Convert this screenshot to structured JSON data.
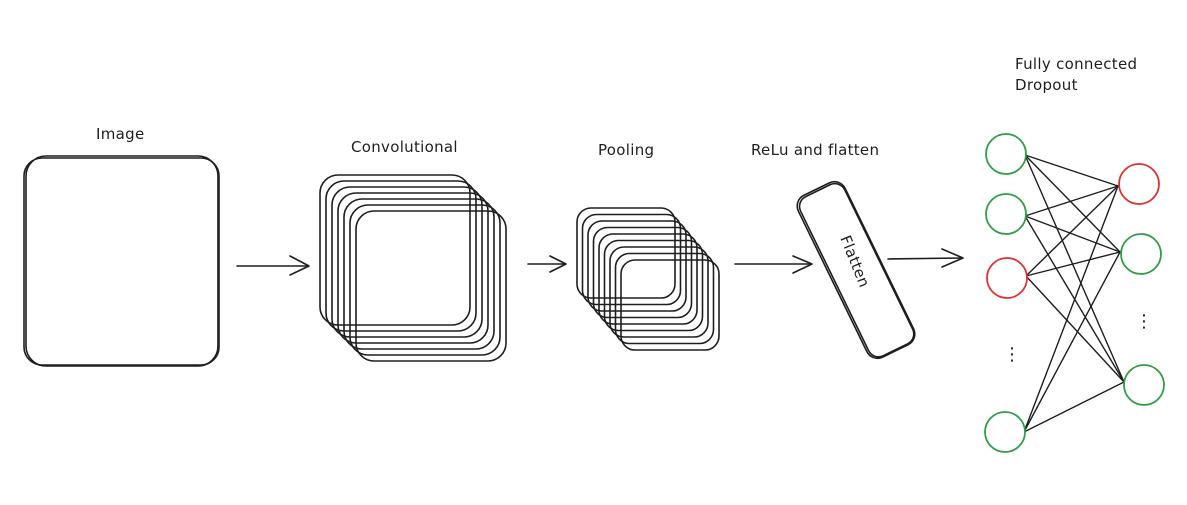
{
  "labels": {
    "image": "Image",
    "convolutional": "Convolutional",
    "pooling": "Pooling",
    "relu_flatten": "ReLu and flatten",
    "flatten_box": "Flatten",
    "fully_connected_line1": "Fully connected",
    "fully_connected_line2": "Dropout",
    "ellipsis_input": "⋮",
    "ellipsis_output": "⋮"
  },
  "colors": {
    "stroke": "#1e1e1e",
    "active_neuron": "#2f9e44",
    "dropped_neuron": "#e03131"
  },
  "network": {
    "input_layer": [
      "active",
      "active",
      "dropped",
      "active"
    ],
    "output_layer": [
      "dropped",
      "active",
      "active"
    ]
  }
}
